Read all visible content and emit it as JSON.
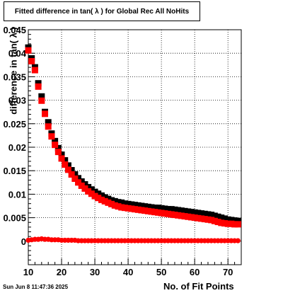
{
  "canvas": {
    "title": "Fitted difference in tan( λ ) for Global Rec All NoHits",
    "timestamp": "Sun Jun  8 11:47:36 2025"
  },
  "chart_data": {
    "type": "scatter",
    "title": "Fitted difference in tan( λ ) for Global Rec All NoHits",
    "xlabel": "No. of Fit Points",
    "ylabel": "difference in tan( λ )",
    "xlim": [
      10,
      74
    ],
    "ylim": [
      -0.005,
      0.045
    ],
    "xticks": [
      10,
      20,
      30,
      40,
      50,
      60,
      70
    ],
    "xtick_labels": [
      "10",
      "20",
      "30",
      "40",
      "50",
      "60",
      "70"
    ],
    "yticks": [
      0,
      0.005,
      0.01,
      0.015,
      0.02,
      0.025,
      0.03,
      0.035,
      0.04,
      0.045
    ],
    "ytick_labels": [
      "0",
      "0.005",
      "0.01",
      "0.015",
      "0.02",
      "0.025",
      "0.03",
      "0.035",
      "0.04",
      "0.045"
    ],
    "grid": true,
    "legend": "none",
    "x": [
      10,
      11,
      12,
      13,
      14,
      15,
      16,
      17,
      18,
      19,
      20,
      21,
      22,
      23,
      24,
      25,
      26,
      27,
      28,
      29,
      30,
      31,
      32,
      33,
      34,
      35,
      36,
      37,
      38,
      39,
      40,
      41,
      42,
      43,
      44,
      45,
      46,
      47,
      48,
      49,
      50,
      51,
      52,
      53,
      54,
      55,
      56,
      57,
      58,
      59,
      60,
      61,
      62,
      63,
      64,
      65,
      66,
      67,
      68,
      69,
      70,
      71,
      72,
      73
    ],
    "series": [
      {
        "color": "#000000",
        "values": [
          0.0412,
          0.0389,
          0.037,
          0.0336,
          0.0308,
          0.0275,
          0.0253,
          0.0229,
          0.0213,
          0.0198,
          0.0184,
          0.0172,
          0.0161,
          0.0151,
          0.0142,
          0.0134,
          0.0127,
          0.0121,
          0.0115,
          0.011,
          0.0105,
          0.0101,
          0.0097,
          0.0093,
          0.009,
          0.0087,
          0.0085,
          0.0083,
          0.0082,
          0.008,
          0.0079,
          0.0078,
          0.0077,
          0.0076,
          0.0075,
          0.0074,
          0.0073,
          0.0072,
          0.0071,
          0.0071,
          0.007,
          0.0069,
          0.0068,
          0.0068,
          0.0067,
          0.0066,
          0.0065,
          0.0064,
          0.0063,
          0.0062,
          0.0061,
          0.006,
          0.0059,
          0.0058,
          0.0057,
          0.0056,
          0.0054,
          0.0052,
          0.005,
          0.0048,
          0.0046,
          0.0045,
          0.0044,
          0.0043
        ]
      },
      {
        "color": "#ff0000",
        "values": [
          0.0406,
          0.0383,
          0.0364,
          0.0329,
          0.0299,
          0.0271,
          0.0244,
          0.0223,
          0.0205,
          0.019,
          0.0176,
          0.0163,
          0.0152,
          0.0142,
          0.0133,
          0.0125,
          0.0118,
          0.0112,
          0.0106,
          0.0101,
          0.0096,
          0.0092,
          0.0088,
          0.0085,
          0.0082,
          0.0079,
          0.0076,
          0.0074,
          0.0072,
          0.0071,
          0.007,
          0.0069,
          0.0068,
          0.0067,
          0.0066,
          0.0065,
          0.0064,
          0.0063,
          0.0062,
          0.0061,
          0.006,
          0.0059,
          0.0058,
          0.0057,
          0.0056,
          0.0055,
          0.0054,
          0.0053,
          0.0052,
          0.0051,
          0.005,
          0.0049,
          0.0048,
          0.0047,
          0.0046,
          0.0045,
          0.0043,
          0.0041,
          0.0039,
          0.0038,
          0.0037,
          0.0037,
          0.0036,
          0.0036
        ]
      },
      {
        "color": "#ff0000",
        "values": [
          0.0002,
          0.0003,
          0.0004,
          0.0004,
          0.0005,
          0.0004,
          0.0004,
          0.0003,
          0.0003,
          0.0003,
          0.0002,
          0.0002,
          0.0002,
          0.0002,
          0.0002,
          0.0001,
          0.0001,
          0.0001,
          0.0001,
          0.0001,
          0.0001,
          0.0001,
          0.0001,
          0.0001,
          0.0001,
          0.0001,
          0.0001,
          0.0001,
          0.0001,
          0.0001,
          0.0001,
          0.0001,
          0.0001,
          0.0001,
          0.0001,
          0.0001,
          0.0001,
          0.0001,
          0.0001,
          0.0001,
          0.0001,
          0.0001,
          0.0001,
          0.0001,
          0.0001,
          0.0001,
          0.0001,
          0.0001,
          0.0001,
          0.0001,
          0.0001,
          0.0001,
          0.0001,
          0.0001,
          0.0001,
          0.0001,
          0.0001,
          0.0001,
          0.0001,
          0.0001,
          0.0001,
          0.0001,
          0.0001,
          0.0001
        ]
      }
    ]
  }
}
